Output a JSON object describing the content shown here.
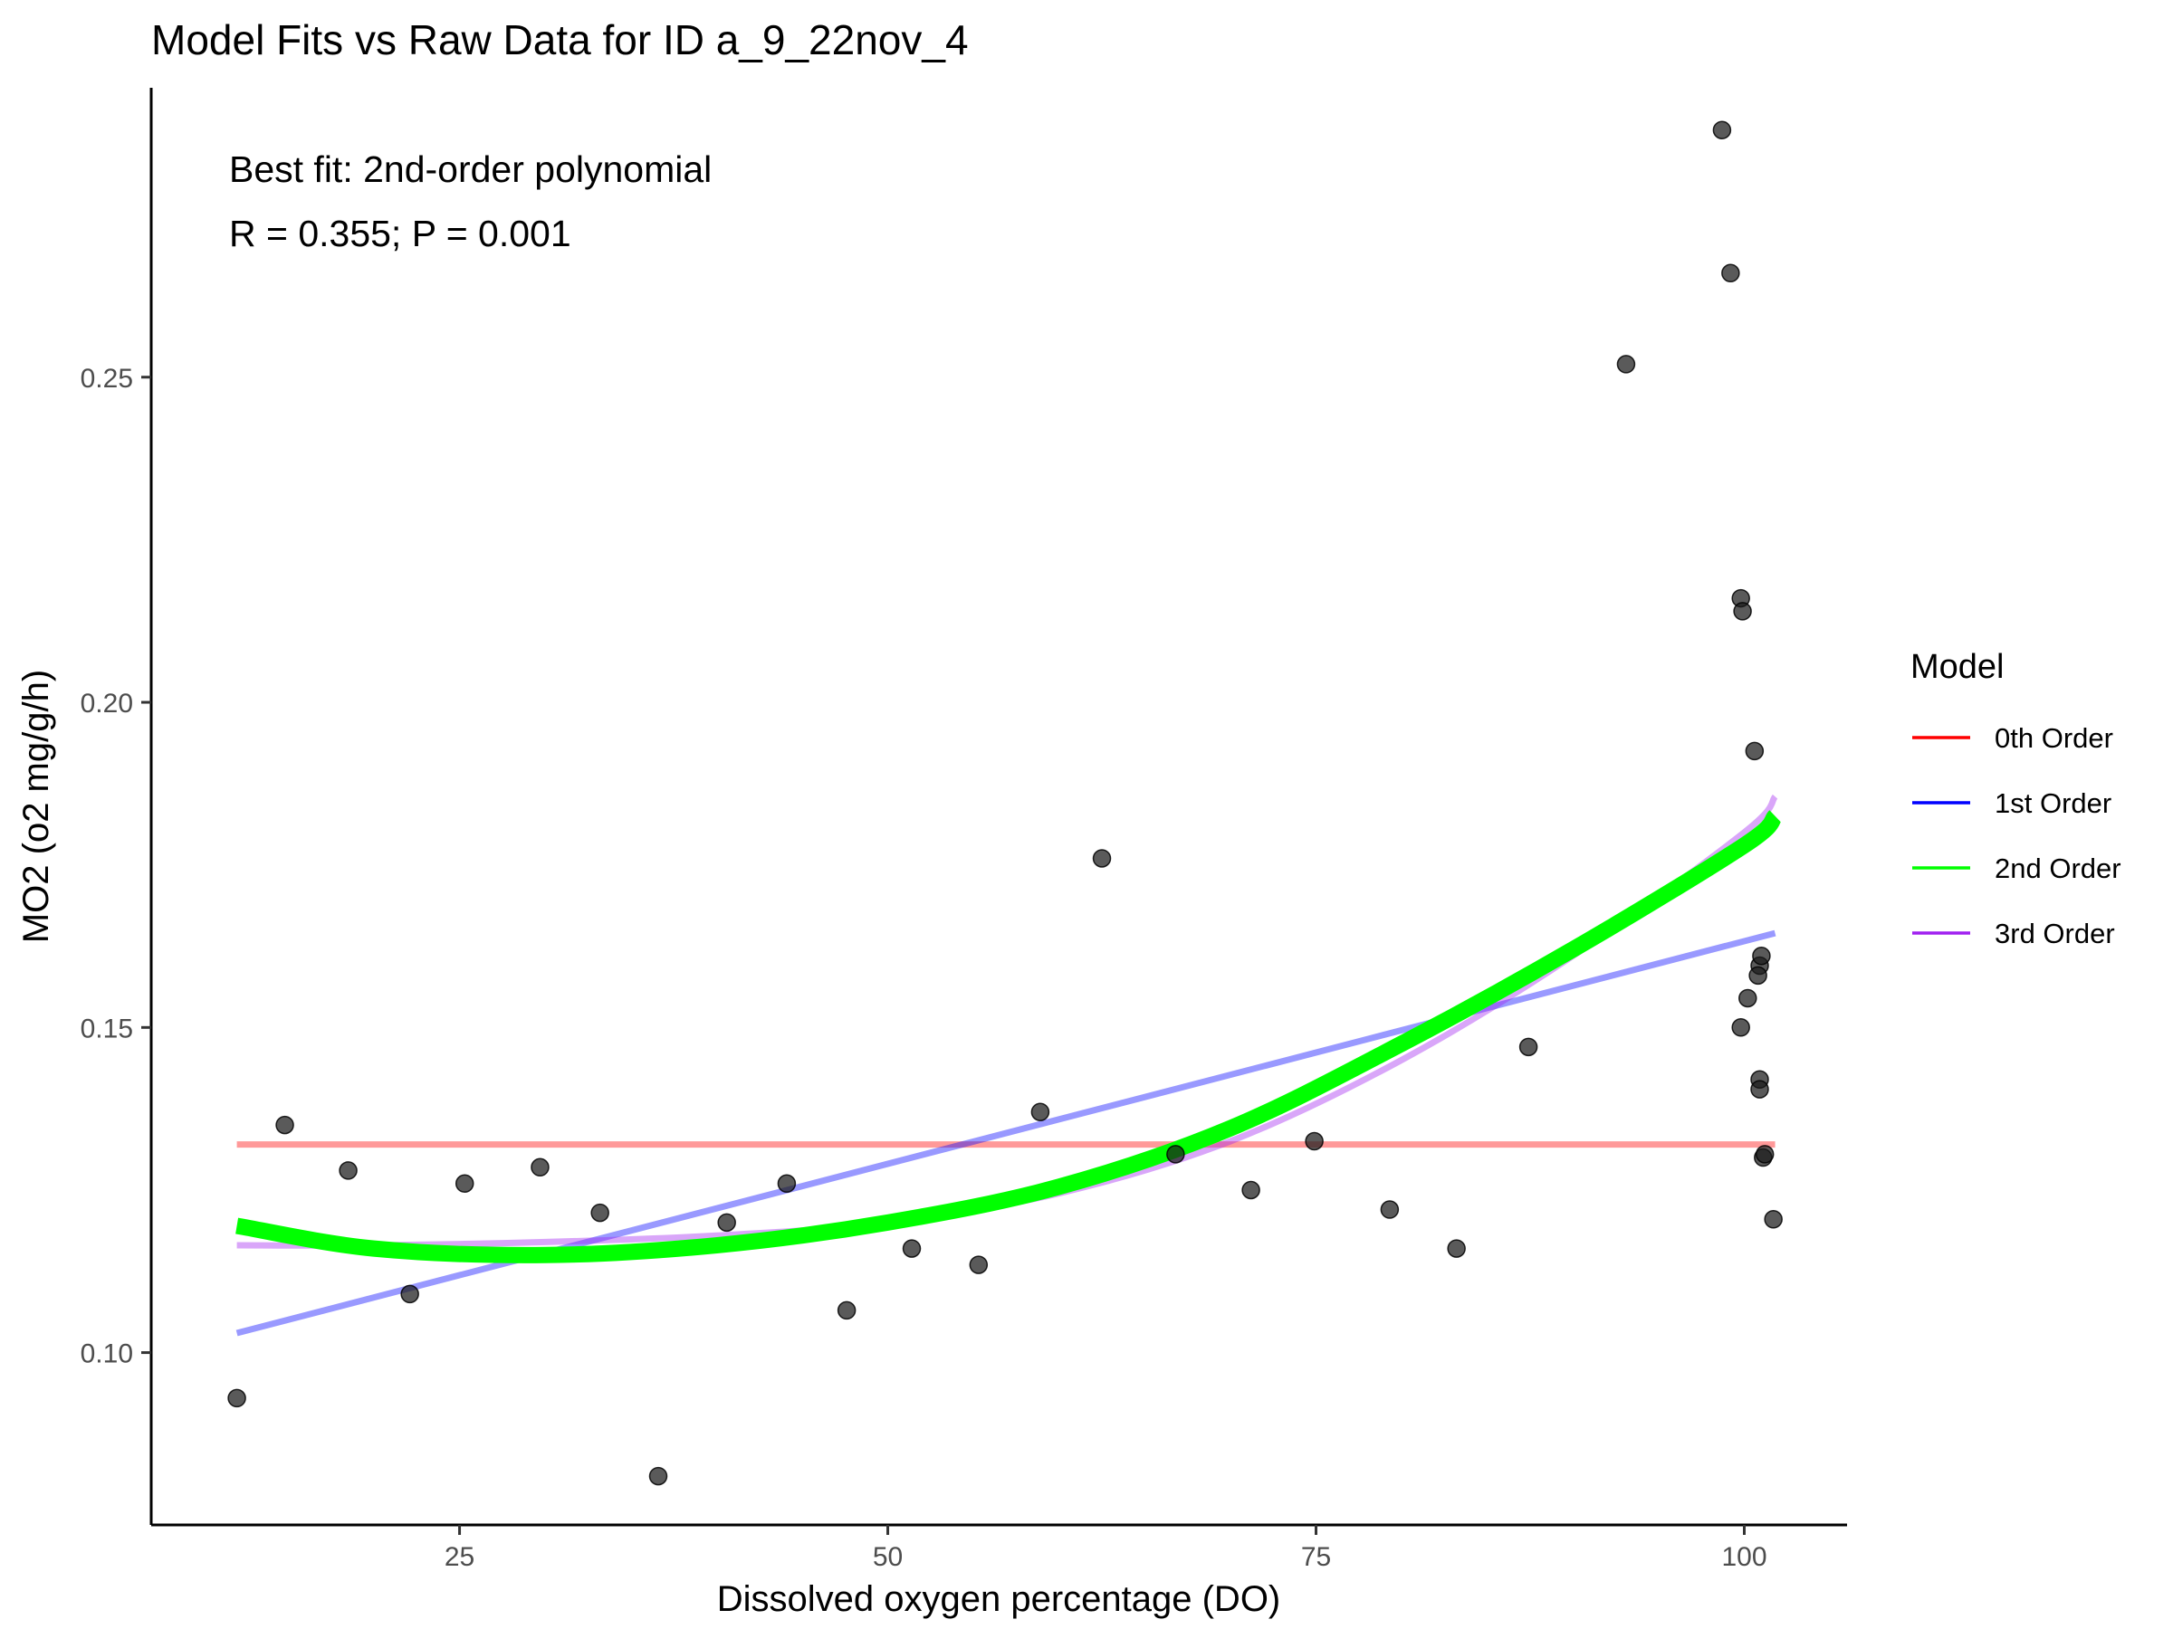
{
  "chart_data": {
    "type": "scatter",
    "title": "Model Fits vs Raw Data for ID a_9_22nov_4",
    "xlabel": "Dissolved oxygen percentage (DO)",
    "ylabel": "MO2 (o2 mg/g/h)",
    "xlim": [
      7,
      106
    ],
    "ylim": [
      0.0735,
      0.2945
    ],
    "x_ticks": [
      25,
      50,
      75,
      100
    ],
    "x_tick_labels": [
      "25",
      "50",
      "75",
      "100"
    ],
    "y_ticks": [
      0.1,
      0.15,
      0.2,
      0.25
    ],
    "y_tick_labels": [
      "0.10",
      "0.15",
      "0.20",
      "0.25"
    ],
    "grid": false,
    "annotations": [
      "Best fit: 2nd-order polynomial",
      "R = 0.355; P = 0.001"
    ],
    "legend": {
      "title": "Model",
      "position": "right",
      "entries": [
        {
          "label": "0th Order",
          "color": "#ff0000"
        },
        {
          "label": "1st Order",
          "color": "#0000ff"
        },
        {
          "label": "2nd Order",
          "color": "#00ff00"
        },
        {
          "label": "3rd Order",
          "color": "#a020f0"
        }
      ]
    },
    "points": {
      "color": "#1a1a1a",
      "x": [
        12.0,
        14.8,
        18.5,
        22.1,
        25.3,
        29.7,
        33.2,
        36.6,
        40.6,
        44.1,
        47.6,
        51.4,
        55.3,
        58.9,
        62.5,
        66.8,
        71.2,
        74.9,
        79.3,
        83.2,
        87.4,
        93.1,
        98.7,
        99.2,
        99.8,
        99.9,
        99.8,
        100.2,
        100.6,
        100.9,
        100.8,
        101.0,
        101.1,
        100.9,
        100.9,
        101.2,
        101.7
      ],
      "y": [
        0.093,
        0.135,
        0.128,
        0.109,
        0.126,
        0.1285,
        0.1215,
        0.081,
        0.12,
        0.126,
        0.1065,
        0.116,
        0.1135,
        0.137,
        0.176,
        0.1305,
        0.125,
        0.1325,
        0.122,
        0.116,
        0.147,
        0.252,
        0.288,
        0.266,
        0.216,
        0.214,
        0.15,
        0.1545,
        0.1925,
        0.1595,
        0.158,
        0.161,
        0.13,
        0.142,
        0.1405,
        0.1305,
        0.1205
      ]
    },
    "series": [
      {
        "name": "0th Order",
        "color": "#ff0000",
        "opacity": 0.4,
        "x": [
          12.0,
          101.8
        ],
        "y": [
          0.132,
          0.132
        ]
      },
      {
        "name": "1st Order",
        "color": "#0000ff",
        "opacity": 0.4,
        "x": [
          12.0,
          101.8
        ],
        "y": [
          0.103,
          0.1645
        ]
      },
      {
        "name": "2nd Order",
        "color": "#00ff00",
        "opacity": 1.0,
        "x": [
          12,
          20,
          30,
          40,
          50,
          60,
          70,
          80,
          90,
          100,
          101.8
        ],
        "y": [
          0.1195,
          0.116,
          0.115,
          0.1165,
          0.12,
          0.1255,
          0.1345,
          0.1475,
          0.162,
          0.178,
          0.1825
        ]
      },
      {
        "name": "3rd Order",
        "color": "#a020f0",
        "opacity": 0.4,
        "x": [
          12,
          20,
          30,
          40,
          50,
          60,
          70,
          80,
          90,
          100,
          101.8
        ],
        "y": [
          0.1165,
          0.1165,
          0.117,
          0.118,
          0.12,
          0.1245,
          0.1325,
          0.145,
          0.161,
          0.18,
          0.1855
        ]
      }
    ]
  }
}
